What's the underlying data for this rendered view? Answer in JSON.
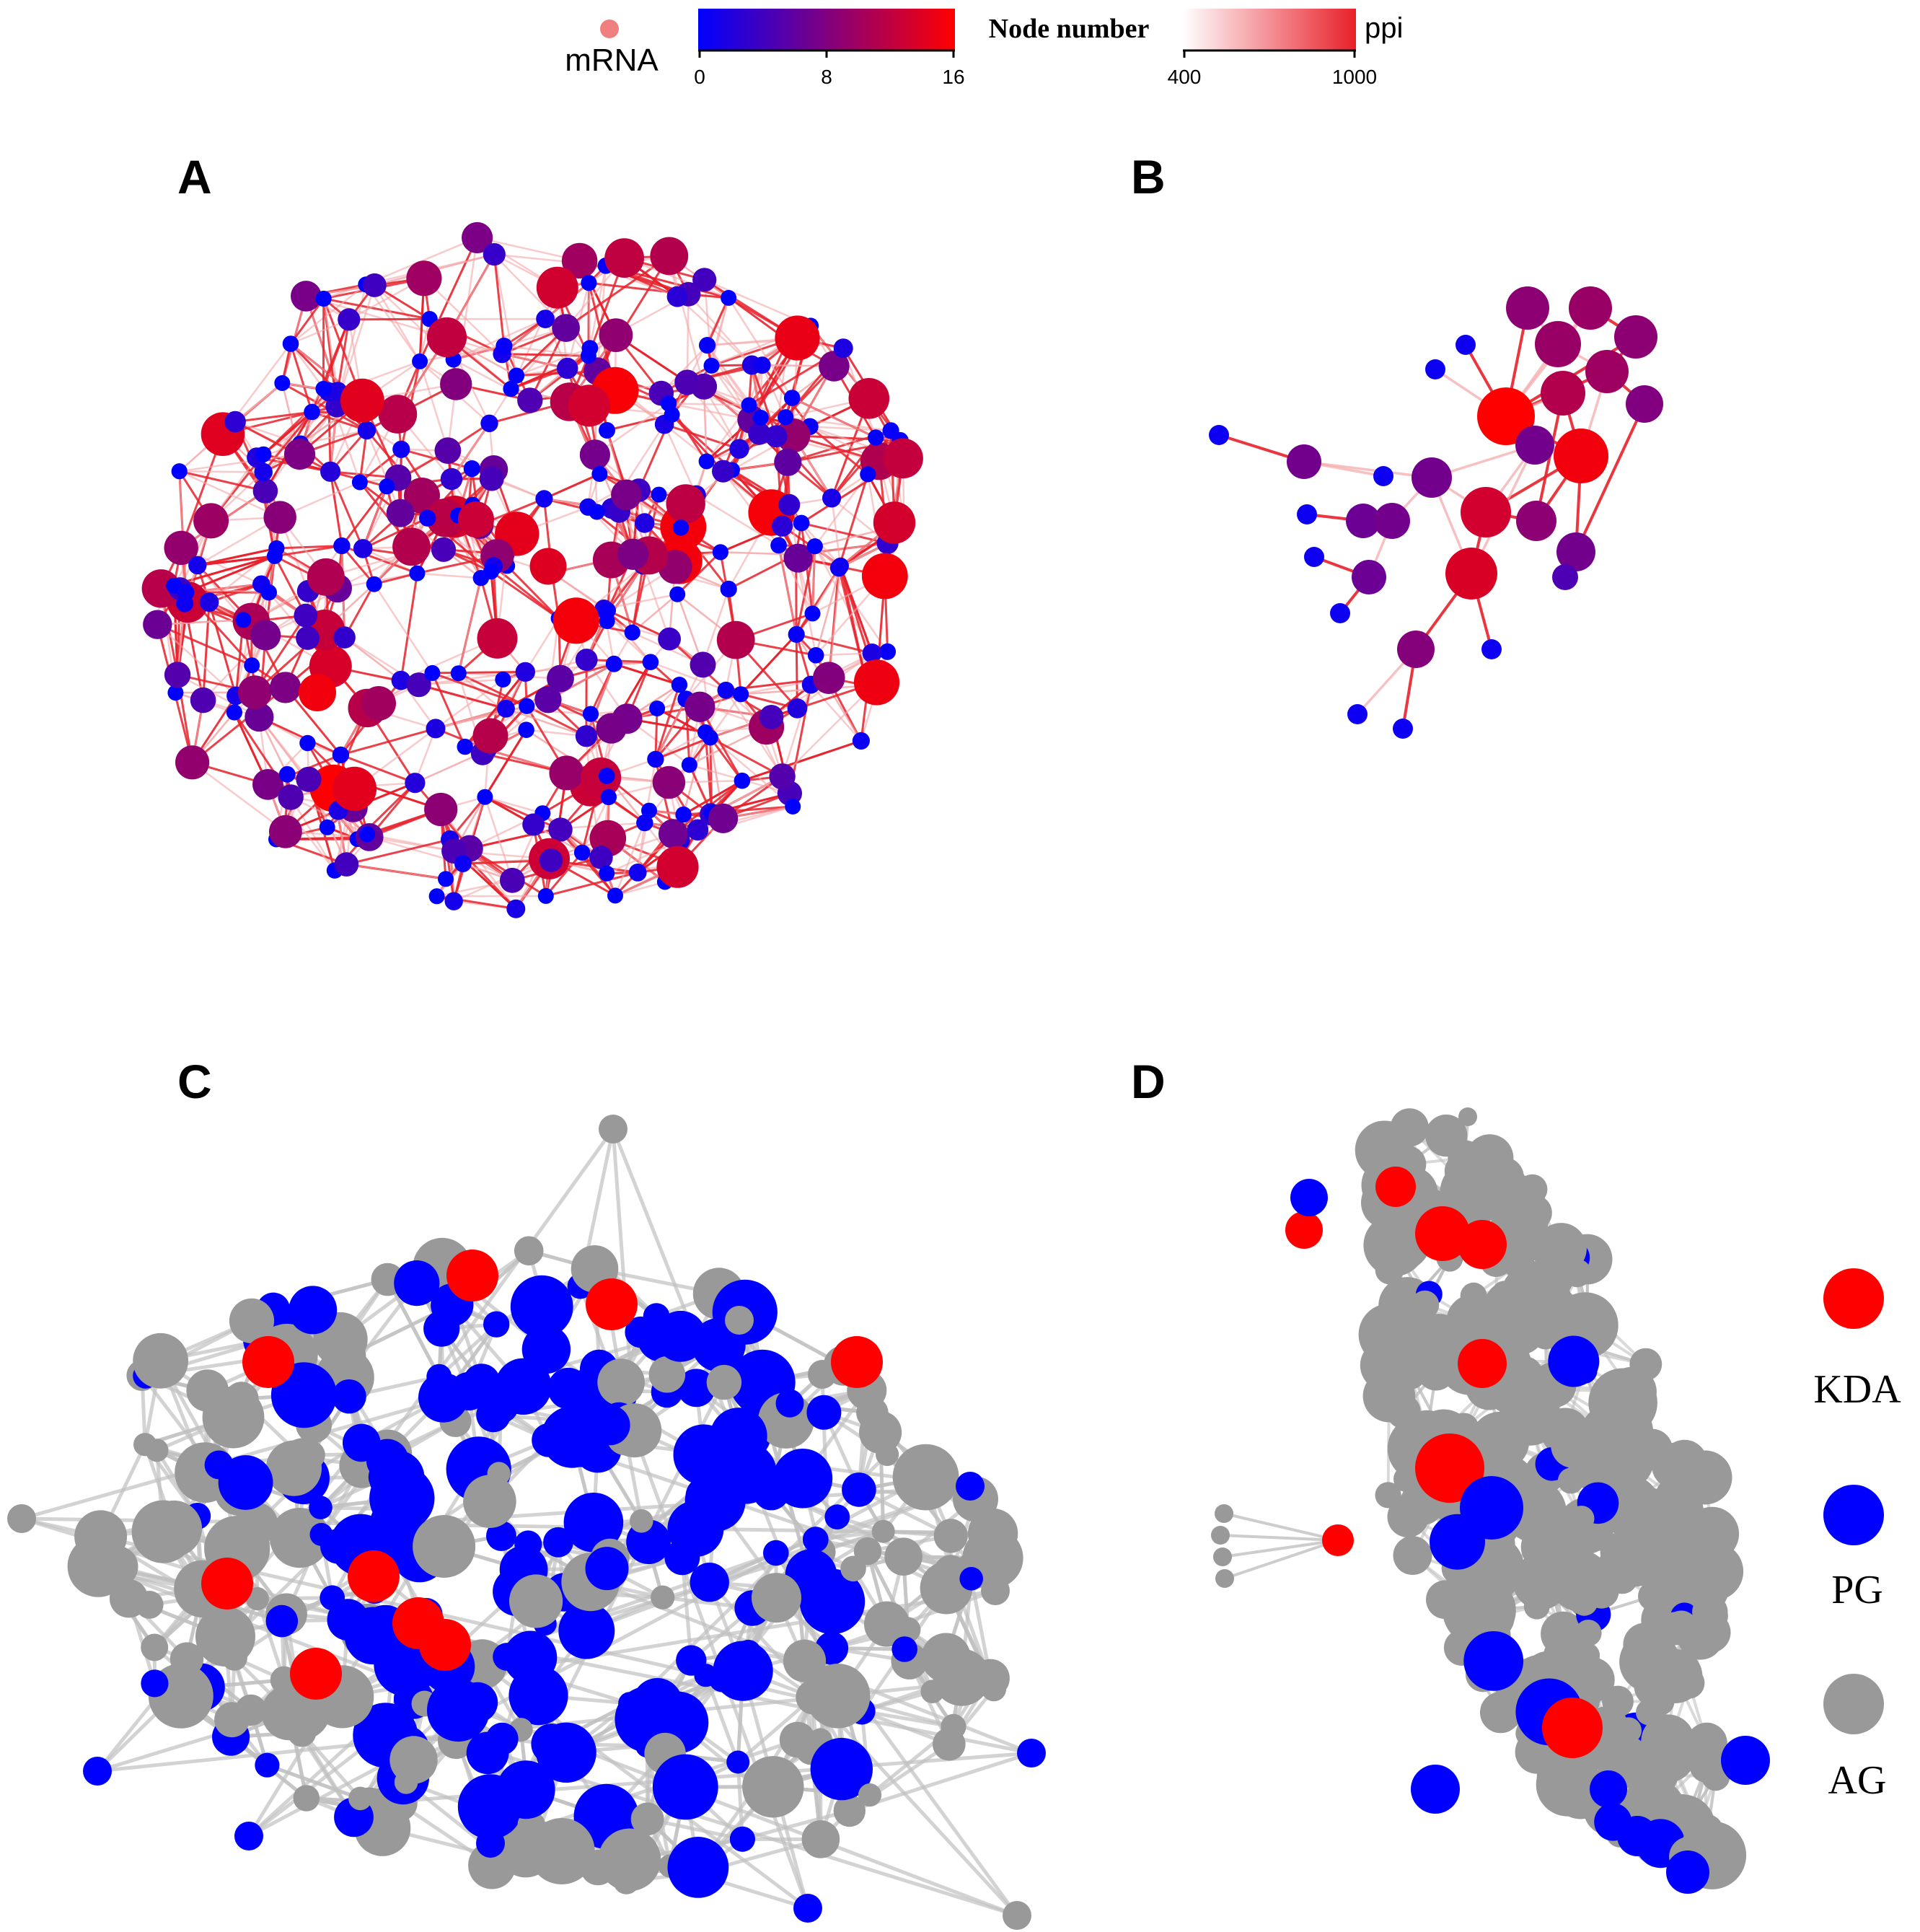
{
  "legend": {
    "mrna_label": "mRNA",
    "mrna_color": "#f08080",
    "node_number": {
      "title": "Node number",
      "ticks": [
        "0",
        "8",
        "16"
      ],
      "colors": [
        "#0000ff",
        "#800080",
        "#ff0000"
      ]
    },
    "ppi": {
      "title": "ppi",
      "ticks": [
        "400",
        "1000"
      ],
      "colors": [
        "#ffffff",
        "#e8202a"
      ]
    }
  },
  "panels": {
    "a": {
      "letter": "A"
    },
    "b": {
      "letter": "B"
    },
    "c": {
      "letter": "C"
    },
    "d": {
      "letter": "D"
    }
  },
  "category_legend": {
    "items": [
      {
        "label": "KDA",
        "color": "#ff0000"
      },
      {
        "label": "PG",
        "color": "#0000ff"
      },
      {
        "label": "AG",
        "color": "#999999"
      }
    ]
  },
  "styles": {
    "edge_red": "#e8202a",
    "edge_pink": "#f4a6a8",
    "edge_gray": "#c0c0c0",
    "node_gray": "#999999",
    "node_blue": "#0000ff",
    "node_red": "#ff0000"
  }
}
